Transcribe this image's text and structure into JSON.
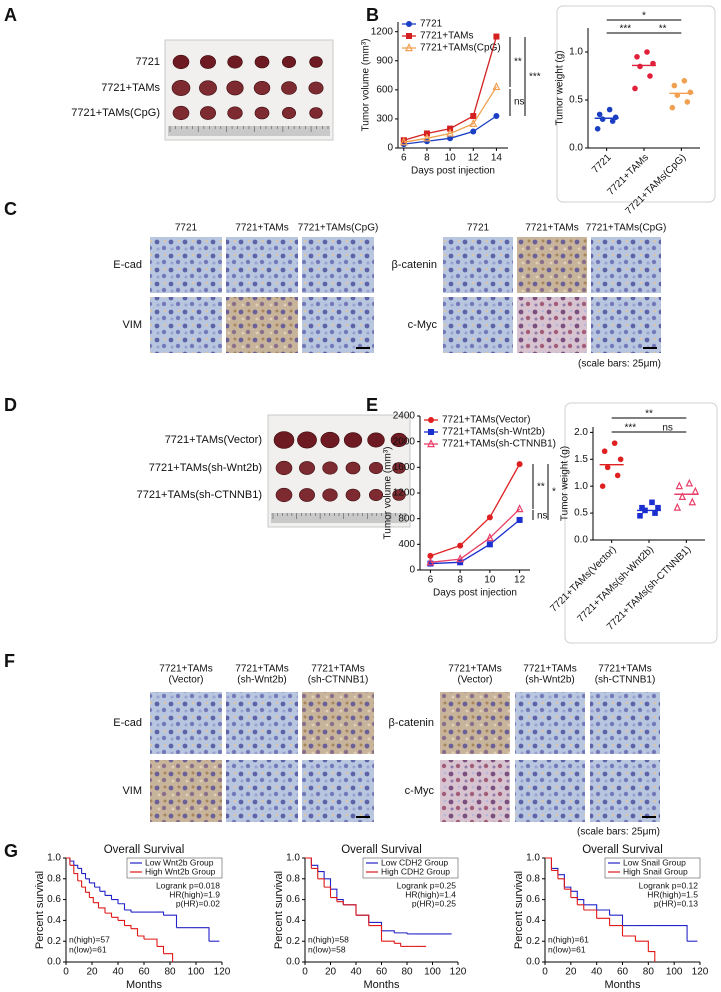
{
  "panel_labels": [
    "A",
    "B",
    "C",
    "D",
    "E",
    "F",
    "G"
  ],
  "panel_a": {
    "row_labels": [
      "7721",
      "7721+TAMs",
      "7721+TAMs(CpG)"
    ]
  },
  "panel_c": {
    "columns": [
      "7721",
      "7721+TAMs",
      "7721+TAMs(CpG)"
    ],
    "rows_left": [
      "E-cad",
      "VIM"
    ],
    "rows_right": [
      "β-catenin",
      "c-Myc"
    ],
    "scale_note": "(scale bars: 25μm)"
  },
  "panel_d": {
    "row_labels": [
      "7721+TAMs(Vector)",
      "7721+TAMs(sh-Wnt2b)",
      "7721+TAMs(sh-CTNNB1)"
    ]
  },
  "panel_f": {
    "columns": [
      [
        "7721+TAMs",
        "(Vector)"
      ],
      [
        "7721+TAMs",
        "(sh-Wnt2b)"
      ],
      [
        "7721+TAMs",
        "(sh-CTNNB1)"
      ]
    ],
    "rows_left": [
      "E-cad",
      "VIM"
    ],
    "rows_right": [
      "β-catenin",
      "c-Myc"
    ],
    "scale_note": "(scale bars: 25μm)"
  },
  "chart_data": [
    {
      "type": "line",
      "x": [
        6,
        8,
        10,
        12,
        14
      ],
      "xlim": [
        5.5,
        15
      ],
      "xticks": [
        6,
        8,
        10,
        12,
        14
      ],
      "ylim": [
        0,
        1300
      ],
      "yticks": [
        0,
        300,
        600,
        900,
        1200
      ],
      "x_label": "Days post injection",
      "y_label": "Tumor volume (mm³)",
      "series": [
        {
          "name": "7721",
          "color": "#1b3fc4",
          "marker": "circle",
          "values": [
            40,
            70,
            100,
            170,
            330
          ]
        },
        {
          "name": "7721+TAMs",
          "color": "#d42020",
          "marker": "square",
          "values": [
            80,
            150,
            200,
            330,
            1150
          ]
        },
        {
          "name": "7721+TAMs(CpG)",
          "color": "#f0a050",
          "marker": "triangle",
          "values": [
            60,
            100,
            150,
            250,
            630
          ]
        }
      ],
      "annotations": [
        "**",
        "***",
        "ns"
      ]
    },
    {
      "type": "dot",
      "categories": [
        "7721",
        "7721+TAMs",
        "7721+TAMs(CpG)"
      ],
      "colors": [
        "#1b3fc4",
        "#e0203a",
        "#f0a050"
      ],
      "markers": [
        "circle",
        "circle",
        "circle"
      ],
      "values": [
        [
          0.2,
          0.28,
          0.3,
          0.32,
          0.35,
          0.4
        ],
        [
          0.62,
          0.75,
          0.85,
          0.88,
          0.95,
          1.0
        ],
        [
          0.42,
          0.48,
          0.55,
          0.58,
          0.65,
          0.7
        ]
      ],
      "means": [
        0.31,
        0.86,
        0.57
      ],
      "ylim": [
        0,
        1.25
      ],
      "yticks": [
        {
          "value": 0,
          "label": "0.0"
        },
        {
          "value": 0.5,
          "label": "0.5"
        },
        {
          "value": 1,
          "label": "1.0"
        }
      ],
      "y_label": "Tumor weight (g)",
      "annotations": [
        "*",
        "***",
        "**"
      ]
    },
    {
      "type": "line",
      "x": [
        6,
        8,
        10,
        12
      ],
      "xlim": [
        5.3,
        12.7
      ],
      "xticks": [
        6,
        8,
        10,
        12
      ],
      "ylim": [
        0,
        2400
      ],
      "yticks": [
        0,
        400,
        800,
        1200,
        1600,
        2000,
        2400
      ],
      "x_label": "Days post injection",
      "y_label": "Tumor volume (mm³)",
      "series": [
        {
          "name": "7721+TAMs(Vector)",
          "color": "#e02020",
          "marker": "circle",
          "values": [
            220,
            380,
            820,
            1650
          ]
        },
        {
          "name": "7721+TAMs(sh-Wnt2b)",
          "color": "#1b2fd0",
          "marker": "square",
          "values": [
            100,
            120,
            400,
            780
          ]
        },
        {
          "name": "7721+TAMs(sh-CTNNB1)",
          "color": "#e8406a",
          "marker": "triangle",
          "values": [
            120,
            170,
            500,
            950
          ]
        }
      ],
      "annotations": [
        "**",
        "*",
        "ns"
      ]
    },
    {
      "type": "dot",
      "categories": [
        "7721+TAMs(Vector)",
        "7721+TAMs(sh-Wnt2b)",
        "7721+TAMs(sh-CTNNB1)"
      ],
      "colors": [
        "#e02020",
        "#1b2fd0",
        "#e8406a"
      ],
      "markers": [
        "circle",
        "square",
        "triangle"
      ],
      "values": [
        [
          1.0,
          1.2,
          1.35,
          1.5,
          1.65,
          1.8
        ],
        [
          0.45,
          0.5,
          0.55,
          0.6,
          0.6,
          0.7
        ],
        [
          0.6,
          0.7,
          0.8,
          0.9,
          1.0,
          1.05
        ]
      ],
      "means": [
        1.4,
        0.55,
        0.85
      ],
      "ylim": [
        0,
        2.1
      ],
      "yticks": [
        {
          "value": 0,
          "label": "0.0"
        },
        {
          "value": 0.5,
          "label": "0.5"
        },
        {
          "value": 1,
          "label": "1.0"
        },
        {
          "value": 1.5,
          "label": "1.5"
        },
        {
          "value": 2,
          "label": "2.0"
        }
      ],
      "y_label": "Tumor weight (g)",
      "annotations": [
        "**",
        "***",
        "ns"
      ]
    },
    {
      "type": "km",
      "title": "Overall Survival",
      "x_label": "Months",
      "y_label": "Percent survival",
      "xlim": [
        0,
        120
      ],
      "xticks": [
        0,
        20,
        40,
        60,
        80,
        100,
        120
      ],
      "ylim": [
        0,
        1
      ],
      "yticks": [
        {
          "value": 0,
          "label": "0.0"
        },
        {
          "value": 0.2,
          "label": "0.2"
        },
        {
          "value": 0.4,
          "label": "0.4"
        },
        {
          "value": 0.6,
          "label": "0.6"
        },
        {
          "value": 0.8,
          "label": "0.8"
        },
        {
          "value": 1,
          "label": "1.0"
        }
      ],
      "series": [
        {
          "name": "Low Wnt2b Group",
          "color": "#2323c8",
          "x": [
            0,
            3,
            6,
            9,
            12,
            15,
            18,
            22,
            26,
            30,
            35,
            40,
            45,
            50,
            60,
            70,
            75,
            85,
            95,
            110,
            118
          ],
          "values": [
            1,
            0.97,
            0.93,
            0.9,
            0.85,
            0.8,
            0.76,
            0.72,
            0.68,
            0.64,
            0.6,
            0.56,
            0.5,
            0.48,
            0.48,
            0.48,
            0.45,
            0.33,
            0.33,
            0.2,
            0.2
          ]
        },
        {
          "name": "High Wnt2b Group",
          "color": "#e01818",
          "x": [
            0,
            3,
            6,
            9,
            12,
            15,
            18,
            21,
            25,
            30,
            35,
            40,
            45,
            50,
            55,
            60,
            70,
            75,
            82
          ],
          "values": [
            1,
            0.93,
            0.85,
            0.78,
            0.72,
            0.67,
            0.62,
            0.57,
            0.52,
            0.47,
            0.43,
            0.4,
            0.35,
            0.32,
            0.25,
            0.22,
            0.15,
            0.08,
            0
          ]
        }
      ],
      "annotations": [
        "Logrank p=0.018",
        "HR(high)=1.9",
        "p(HR)=0.02",
        "n(high)=57",
        "n(low)=61"
      ]
    },
    {
      "type": "km",
      "title": "Overall Survival",
      "x_label": "Months",
      "y_label": "Percent survival",
      "xlim": [
        0,
        120
      ],
      "xticks": [
        0,
        20,
        40,
        60,
        80,
        100,
        120
      ],
      "ylim": [
        0,
        1
      ],
      "yticks": [
        {
          "value": 0,
          "label": "0.0"
        },
        {
          "value": 0.2,
          "label": "0.2"
        },
        {
          "value": 0.4,
          "label": "0.4"
        },
        {
          "value": 0.6,
          "label": "0.6"
        },
        {
          "value": 0.8,
          "label": "0.8"
        },
        {
          "value": 1,
          "label": "1.0"
        }
      ],
      "series": [
        {
          "name": "Low CDH2 Group",
          "color": "#2323c8",
          "x": [
            0,
            5,
            10,
            15,
            20,
            25,
            30,
            40,
            50,
            60,
            70,
            80,
            85,
            115
          ],
          "values": [
            1,
            0.93,
            0.87,
            0.8,
            0.7,
            0.6,
            0.55,
            0.45,
            0.38,
            0.3,
            0.28,
            0.27,
            0.27,
            0.27
          ]
        },
        {
          "name": "High CDH2 Group",
          "color": "#e01818",
          "x": [
            0,
            5,
            10,
            15,
            20,
            25,
            30,
            40,
            50,
            60,
            70,
            75,
            85,
            95
          ],
          "values": [
            1,
            0.9,
            0.8,
            0.72,
            0.62,
            0.58,
            0.55,
            0.45,
            0.35,
            0.2,
            0.18,
            0.15,
            0.15,
            0.15
          ]
        }
      ],
      "annotations": [
        "Logrank p=0.25",
        "HR(high)=1.4",
        "p(HR)=0.25",
        "n(high)=58",
        "n(low)=58"
      ]
    },
    {
      "type": "km",
      "title": "Overall Survival",
      "x_label": "Months",
      "y_label": "Percent survival",
      "xlim": [
        0,
        120
      ],
      "xticks": [
        0,
        20,
        40,
        60,
        80,
        100,
        120
      ],
      "ylim": [
        0,
        1
      ],
      "yticks": [
        {
          "value": 0,
          "label": "0.0"
        },
        {
          "value": 0.2,
          "label": "0.2"
        },
        {
          "value": 0.4,
          "label": "0.4"
        },
        {
          "value": 0.6,
          "label": "0.6"
        },
        {
          "value": 0.8,
          "label": "0.8"
        },
        {
          "value": 1,
          "label": "1.0"
        }
      ],
      "series": [
        {
          "name": "Low Snail Group",
          "color": "#2323c8",
          "x": [
            0,
            5,
            10,
            15,
            20,
            25,
            30,
            40,
            50,
            60,
            70,
            85,
            110,
            118
          ],
          "values": [
            1,
            0.9,
            0.84,
            0.72,
            0.68,
            0.6,
            0.55,
            0.5,
            0.45,
            0.35,
            0.35,
            0.35,
            0.2,
            0.2
          ]
        },
        {
          "name": "High Snail Group",
          "color": "#e01818",
          "x": [
            0,
            5,
            10,
            15,
            20,
            25,
            30,
            40,
            50,
            60,
            70,
            80,
            85
          ],
          "values": [
            1,
            0.88,
            0.8,
            0.7,
            0.62,
            0.55,
            0.5,
            0.42,
            0.35,
            0.25,
            0.2,
            0.1,
            0
          ]
        }
      ],
      "annotations": [
        "Logrank p=0.12",
        "HR(high)=1.5",
        "p(HR)=0.13",
        "n(high)=61",
        "n(low)=61"
      ]
    }
  ]
}
